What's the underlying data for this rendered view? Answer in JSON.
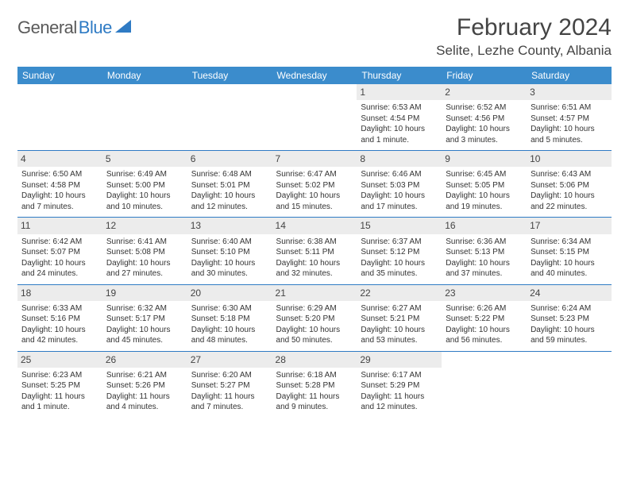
{
  "logo": {
    "text1": "General",
    "text2": "Blue"
  },
  "title": "February 2024",
  "location": "Selite, Lezhe County, Albania",
  "colors": {
    "header_bg": "#3b8ccc",
    "header_text": "#ffffff",
    "row_border": "#2f7bc4",
    "daynum_bg": "#ececec",
    "body_text": "#333333",
    "logo_gray": "#5a5a5a",
    "logo_blue": "#2f7bc4"
  },
  "weekdays": [
    "Sunday",
    "Monday",
    "Tuesday",
    "Wednesday",
    "Thursday",
    "Friday",
    "Saturday"
  ],
  "weeks": [
    [
      {
        "empty": true
      },
      {
        "empty": true
      },
      {
        "empty": true
      },
      {
        "empty": true
      },
      {
        "day": "1",
        "sunrise": "Sunrise: 6:53 AM",
        "sunset": "Sunset: 4:54 PM",
        "daylight1": "Daylight: 10 hours",
        "daylight2": "and 1 minute."
      },
      {
        "day": "2",
        "sunrise": "Sunrise: 6:52 AM",
        "sunset": "Sunset: 4:56 PM",
        "daylight1": "Daylight: 10 hours",
        "daylight2": "and 3 minutes."
      },
      {
        "day": "3",
        "sunrise": "Sunrise: 6:51 AM",
        "sunset": "Sunset: 4:57 PM",
        "daylight1": "Daylight: 10 hours",
        "daylight2": "and 5 minutes."
      }
    ],
    [
      {
        "day": "4",
        "sunrise": "Sunrise: 6:50 AM",
        "sunset": "Sunset: 4:58 PM",
        "daylight1": "Daylight: 10 hours",
        "daylight2": "and 7 minutes."
      },
      {
        "day": "5",
        "sunrise": "Sunrise: 6:49 AM",
        "sunset": "Sunset: 5:00 PM",
        "daylight1": "Daylight: 10 hours",
        "daylight2": "and 10 minutes."
      },
      {
        "day": "6",
        "sunrise": "Sunrise: 6:48 AM",
        "sunset": "Sunset: 5:01 PM",
        "daylight1": "Daylight: 10 hours",
        "daylight2": "and 12 minutes."
      },
      {
        "day": "7",
        "sunrise": "Sunrise: 6:47 AM",
        "sunset": "Sunset: 5:02 PM",
        "daylight1": "Daylight: 10 hours",
        "daylight2": "and 15 minutes."
      },
      {
        "day": "8",
        "sunrise": "Sunrise: 6:46 AM",
        "sunset": "Sunset: 5:03 PM",
        "daylight1": "Daylight: 10 hours",
        "daylight2": "and 17 minutes."
      },
      {
        "day": "9",
        "sunrise": "Sunrise: 6:45 AM",
        "sunset": "Sunset: 5:05 PM",
        "daylight1": "Daylight: 10 hours",
        "daylight2": "and 19 minutes."
      },
      {
        "day": "10",
        "sunrise": "Sunrise: 6:43 AM",
        "sunset": "Sunset: 5:06 PM",
        "daylight1": "Daylight: 10 hours",
        "daylight2": "and 22 minutes."
      }
    ],
    [
      {
        "day": "11",
        "sunrise": "Sunrise: 6:42 AM",
        "sunset": "Sunset: 5:07 PM",
        "daylight1": "Daylight: 10 hours",
        "daylight2": "and 24 minutes."
      },
      {
        "day": "12",
        "sunrise": "Sunrise: 6:41 AM",
        "sunset": "Sunset: 5:08 PM",
        "daylight1": "Daylight: 10 hours",
        "daylight2": "and 27 minutes."
      },
      {
        "day": "13",
        "sunrise": "Sunrise: 6:40 AM",
        "sunset": "Sunset: 5:10 PM",
        "daylight1": "Daylight: 10 hours",
        "daylight2": "and 30 minutes."
      },
      {
        "day": "14",
        "sunrise": "Sunrise: 6:38 AM",
        "sunset": "Sunset: 5:11 PM",
        "daylight1": "Daylight: 10 hours",
        "daylight2": "and 32 minutes."
      },
      {
        "day": "15",
        "sunrise": "Sunrise: 6:37 AM",
        "sunset": "Sunset: 5:12 PM",
        "daylight1": "Daylight: 10 hours",
        "daylight2": "and 35 minutes."
      },
      {
        "day": "16",
        "sunrise": "Sunrise: 6:36 AM",
        "sunset": "Sunset: 5:13 PM",
        "daylight1": "Daylight: 10 hours",
        "daylight2": "and 37 minutes."
      },
      {
        "day": "17",
        "sunrise": "Sunrise: 6:34 AM",
        "sunset": "Sunset: 5:15 PM",
        "daylight1": "Daylight: 10 hours",
        "daylight2": "and 40 minutes."
      }
    ],
    [
      {
        "day": "18",
        "sunrise": "Sunrise: 6:33 AM",
        "sunset": "Sunset: 5:16 PM",
        "daylight1": "Daylight: 10 hours",
        "daylight2": "and 42 minutes."
      },
      {
        "day": "19",
        "sunrise": "Sunrise: 6:32 AM",
        "sunset": "Sunset: 5:17 PM",
        "daylight1": "Daylight: 10 hours",
        "daylight2": "and 45 minutes."
      },
      {
        "day": "20",
        "sunrise": "Sunrise: 6:30 AM",
        "sunset": "Sunset: 5:18 PM",
        "daylight1": "Daylight: 10 hours",
        "daylight2": "and 48 minutes."
      },
      {
        "day": "21",
        "sunrise": "Sunrise: 6:29 AM",
        "sunset": "Sunset: 5:20 PM",
        "daylight1": "Daylight: 10 hours",
        "daylight2": "and 50 minutes."
      },
      {
        "day": "22",
        "sunrise": "Sunrise: 6:27 AM",
        "sunset": "Sunset: 5:21 PM",
        "daylight1": "Daylight: 10 hours",
        "daylight2": "and 53 minutes."
      },
      {
        "day": "23",
        "sunrise": "Sunrise: 6:26 AM",
        "sunset": "Sunset: 5:22 PM",
        "daylight1": "Daylight: 10 hours",
        "daylight2": "and 56 minutes."
      },
      {
        "day": "24",
        "sunrise": "Sunrise: 6:24 AM",
        "sunset": "Sunset: 5:23 PM",
        "daylight1": "Daylight: 10 hours",
        "daylight2": "and 59 minutes."
      }
    ],
    [
      {
        "day": "25",
        "sunrise": "Sunrise: 6:23 AM",
        "sunset": "Sunset: 5:25 PM",
        "daylight1": "Daylight: 11 hours",
        "daylight2": "and 1 minute."
      },
      {
        "day": "26",
        "sunrise": "Sunrise: 6:21 AM",
        "sunset": "Sunset: 5:26 PM",
        "daylight1": "Daylight: 11 hours",
        "daylight2": "and 4 minutes."
      },
      {
        "day": "27",
        "sunrise": "Sunrise: 6:20 AM",
        "sunset": "Sunset: 5:27 PM",
        "daylight1": "Daylight: 11 hours",
        "daylight2": "and 7 minutes."
      },
      {
        "day": "28",
        "sunrise": "Sunrise: 6:18 AM",
        "sunset": "Sunset: 5:28 PM",
        "daylight1": "Daylight: 11 hours",
        "daylight2": "and 9 minutes."
      },
      {
        "day": "29",
        "sunrise": "Sunrise: 6:17 AM",
        "sunset": "Sunset: 5:29 PM",
        "daylight1": "Daylight: 11 hours",
        "daylight2": "and 12 minutes."
      },
      {
        "empty": true
      },
      {
        "empty": true
      }
    ]
  ]
}
